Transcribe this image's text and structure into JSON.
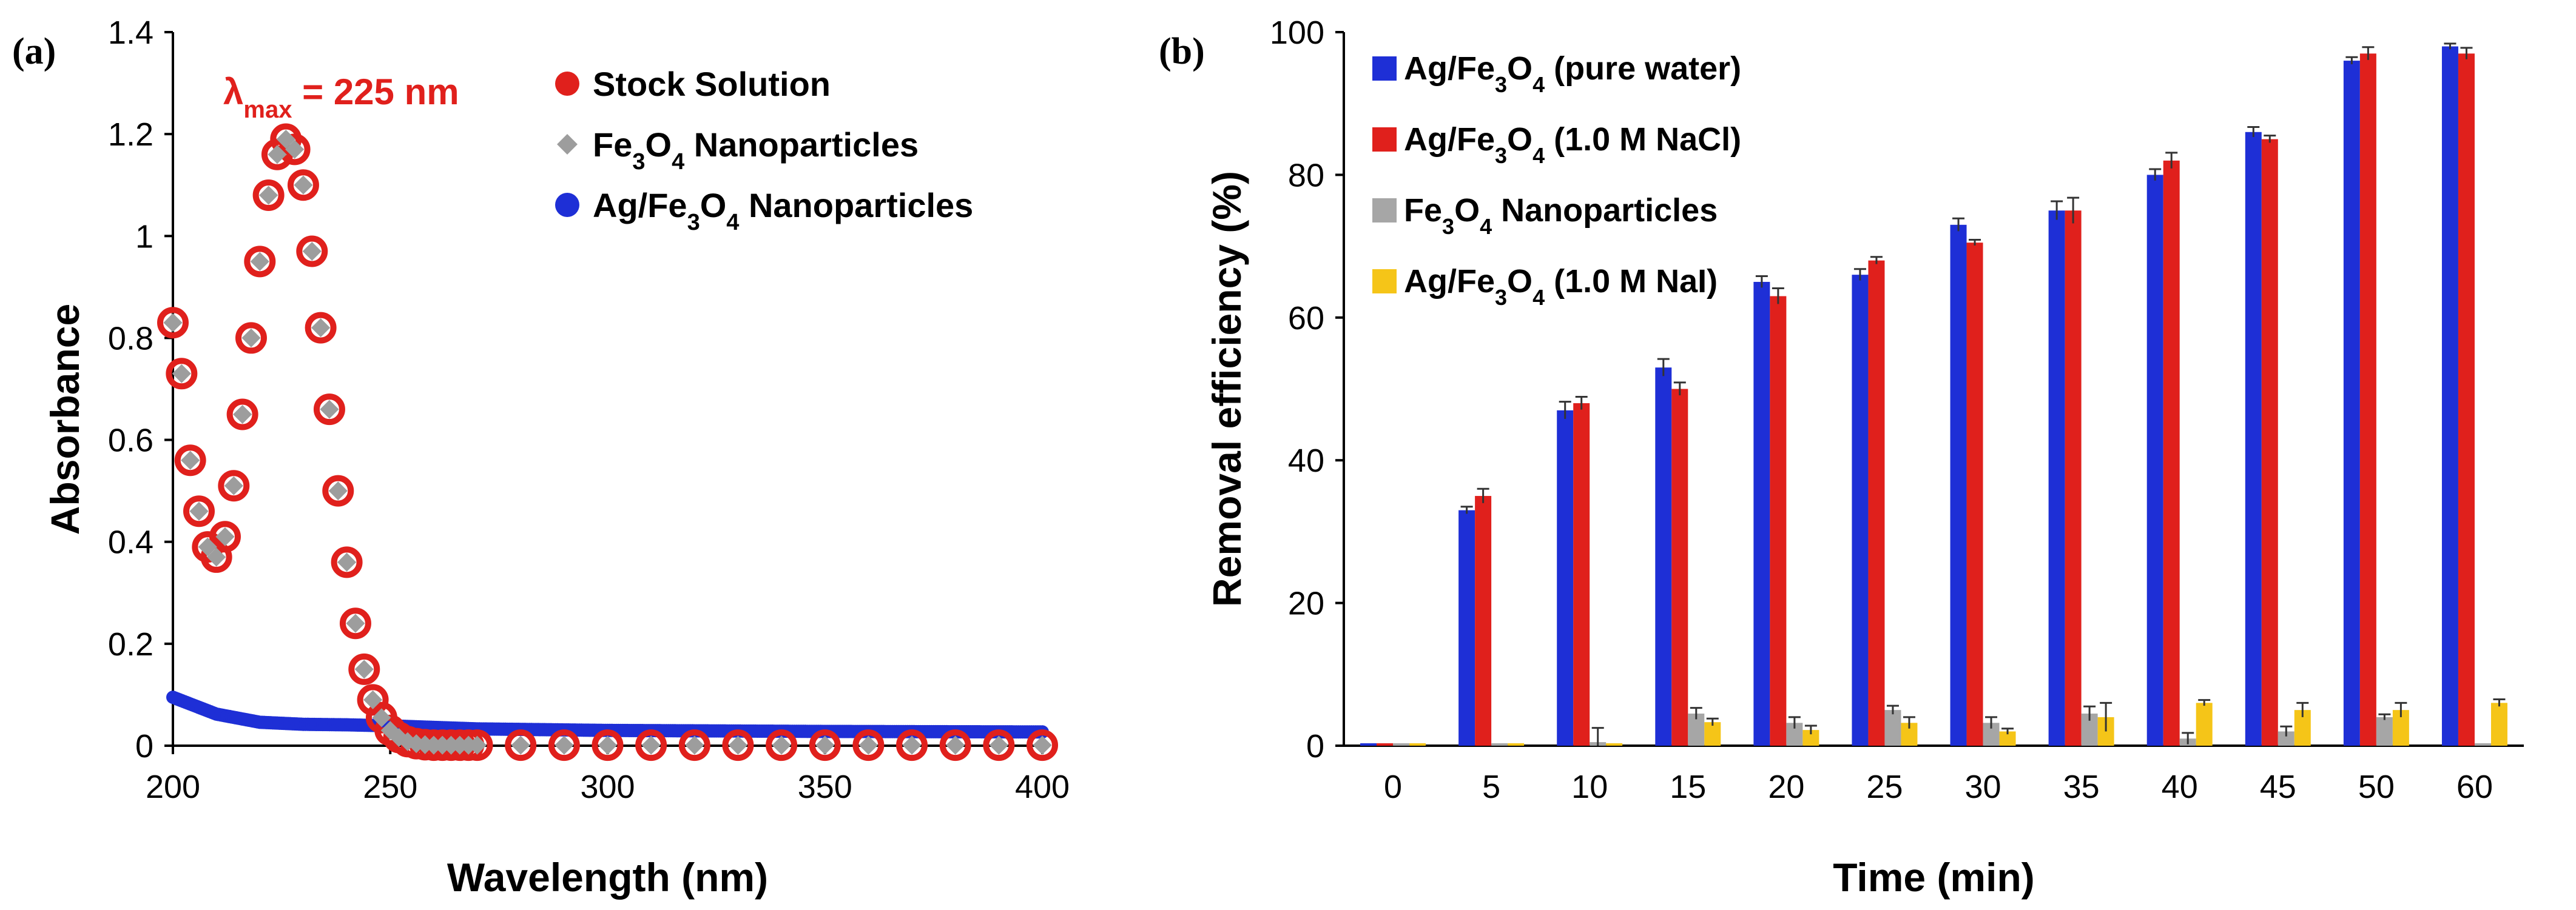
{
  "chart_data": [
    {
      "type": "scatter",
      "panel_label": "(a)",
      "xlabel": "Wavelength (nm)",
      "ylabel": "Absorbance",
      "xlim": [
        200,
        400
      ],
      "ylim": [
        0,
        1.4
      ],
      "xticks": [
        "200",
        "250",
        "300",
        "350",
        "400"
      ],
      "yticks": [
        "0",
        "0.2",
        "0.4",
        "0.6",
        "0.8",
        "1",
        "1.2",
        "1.4"
      ],
      "annotation": {
        "text": "λ",
        "sub": "max",
        "rest": " = 225 nm",
        "color": "#e0201c"
      },
      "legend": [
        "Stock Solution",
        "Fe3O4 Nanoparticles",
        "Ag/Fe3O4 Nanoparticles"
      ],
      "colors": {
        "stock": "#e0201c",
        "fe3o4": "#9d9d9d",
        "ag": "#1e2fd6"
      },
      "series": [
        {
          "name": "Stock Solution",
          "x": [
            200,
            202,
            204,
            206,
            208,
            210,
            212,
            214,
            216,
            218,
            220,
            222,
            224,
            226,
            228,
            230,
            232,
            234,
            236,
            238,
            240,
            242,
            244,
            246,
            248,
            250,
            252,
            254,
            256,
            258,
            260,
            262,
            264,
            266,
            268,
            270,
            280,
            290,
            300,
            310,
            320,
            330,
            340,
            350,
            360,
            370,
            380,
            390,
            400
          ],
          "y": [
            0.83,
            0.73,
            0.56,
            0.46,
            0.39,
            0.37,
            0.41,
            0.51,
            0.65,
            0.8,
            0.95,
            1.08,
            1.16,
            1.19,
            1.17,
            1.1,
            0.97,
            0.82,
            0.66,
            0.5,
            0.36,
            0.24,
            0.15,
            0.09,
            0.055,
            0.03,
            0.016,
            0.008,
            0.004,
            0.002,
            0.001,
            0.001,
            0.001,
            0.001,
            0.001,
            0.001,
            0.001,
            0.001,
            0.001,
            0.001,
            0.001,
            0.001,
            0.001,
            0.001,
            0.001,
            0.001,
            0.001,
            0.001,
            0.001
          ]
        },
        {
          "name": "Fe3O4 Nanoparticles",
          "x": [
            200,
            202,
            204,
            206,
            208,
            210,
            212,
            214,
            216,
            218,
            220,
            222,
            224,
            226,
            228,
            230,
            232,
            234,
            236,
            238,
            240,
            242,
            244,
            246,
            248,
            250,
            252,
            254,
            256,
            258,
            260,
            262,
            264,
            266,
            268,
            270,
            280,
            290,
            300,
            310,
            320,
            330,
            340,
            350,
            360,
            370,
            380,
            390,
            400
          ],
          "y": [
            0.83,
            0.73,
            0.56,
            0.46,
            0.39,
            0.37,
            0.41,
            0.51,
            0.65,
            0.8,
            0.95,
            1.08,
            1.16,
            1.19,
            1.17,
            1.1,
            0.97,
            0.82,
            0.66,
            0.5,
            0.36,
            0.24,
            0.15,
            0.09,
            0.055,
            0.03,
            0.016,
            0.008,
            0.004,
            0.002,
            0.001,
            0.001,
            0.001,
            0.001,
            0.001,
            0.001,
            0.001,
            0.001,
            0.001,
            0.001,
            0.001,
            0.001,
            0.001,
            0.001,
            0.001,
            0.001,
            0.001,
            0.001,
            0.001
          ]
        },
        {
          "name": "Ag/Fe3O4 Nanoparticles",
          "x": [
            200,
            210,
            220,
            230,
            240,
            250,
            260,
            270,
            300,
            350,
            400
          ],
          "y": [
            0.095,
            0.062,
            0.046,
            0.042,
            0.041,
            0.039,
            0.036,
            0.033,
            0.03,
            0.028,
            0.027
          ]
        }
      ]
    },
    {
      "type": "bar",
      "panel_label": "(b)",
      "xlabel": "Time (min)",
      "ylabel": "Removal efficiency (%)",
      "ylim": [
        0,
        100
      ],
      "yticks": [
        "0",
        "20",
        "40",
        "60",
        "80",
        "100"
      ],
      "categories": [
        "0",
        "5",
        "10",
        "15",
        "20",
        "25",
        "30",
        "35",
        "40",
        "45",
        "50",
        "60"
      ],
      "colors": [
        "#1e2fd6",
        "#e0201c",
        "#a6a6a6",
        "#f5c518"
      ],
      "legend": [
        {
          "pre": "Ag/Fe",
          "s1": "3",
          "mid": "O",
          "s2": "4",
          "post": " (pure water)"
        },
        {
          "pre": "Ag/Fe",
          "s1": "3",
          "mid": "O",
          "s2": "4",
          "post": " (1.0 M NaCl)"
        },
        {
          "pre": "Fe",
          "s1": "3",
          "mid": "O",
          "s2": "4",
          "post": " Nanoparticles"
        },
        {
          "pre": "Ag/Fe",
          "s1": "3",
          "mid": "O",
          "s2": "4",
          "post": " (1.0 M NaI)"
        }
      ],
      "series": [
        {
          "name": "Ag/Fe3O4 (pure water)",
          "values": [
            0,
            33,
            47,
            53,
            65,
            66,
            73,
            75,
            80,
            86,
            96,
            98
          ],
          "errors": [
            0,
            0.5,
            1.2,
            1.2,
            0.8,
            0.8,
            0.9,
            1.3,
            0.8,
            0.7,
            0.5,
            0.4
          ]
        },
        {
          "name": "Ag/Fe3O4 (1.0 M NaCl)",
          "values": [
            0,
            35,
            48,
            50,
            63,
            68,
            70.5,
            75,
            82,
            85,
            97,
            97
          ],
          "errors": [
            0,
            1.0,
            0.9,
            0.9,
            1.1,
            0.5,
            0.4,
            1.8,
            1.1,
            0.5,
            0.9,
            0.8
          ]
        },
        {
          "name": "Fe3O4 Nanoparticles",
          "values": [
            0,
            0,
            0.5,
            4.5,
            3.2,
            5.0,
            3.2,
            4.5,
            1.0,
            2.0,
            4.0,
            0
          ],
          "errors": [
            0,
            0,
            2.0,
            0.8,
            0.8,
            0.6,
            0.8,
            1.0,
            0.8,
            0.7,
            0.4,
            0
          ]
        },
        {
          "name": "Ag/Fe3O4 (1.0 M NaI)",
          "values": [
            0,
            0,
            0,
            3.3,
            2.2,
            3.2,
            2.0,
            4.0,
            6.0,
            5.0,
            5.0,
            6.0
          ],
          "errors": [
            0,
            0,
            0,
            0.5,
            0.6,
            0.8,
            0.4,
            2.0,
            0.4,
            1.0,
            1.0,
            0.5
          ]
        }
      ]
    }
  ]
}
